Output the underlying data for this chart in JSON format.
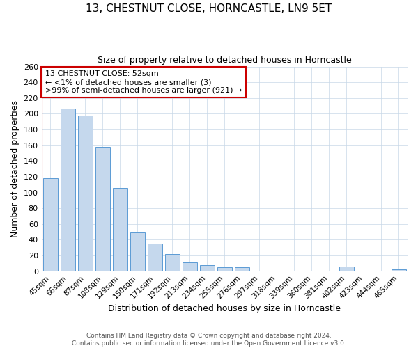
{
  "title": "13, CHESTNUT CLOSE, HORNCASTLE, LN9 5ET",
  "subtitle": "Size of property relative to detached houses in Horncastle",
  "xlabel": "Distribution of detached houses by size in Horncastle",
  "ylabel": "Number of detached properties",
  "bar_labels": [
    "45sqm",
    "66sqm",
    "87sqm",
    "108sqm",
    "129sqm",
    "150sqm",
    "171sqm",
    "192sqm",
    "213sqm",
    "234sqm",
    "255sqm",
    "276sqm",
    "297sqm",
    "318sqm",
    "339sqm",
    "360sqm",
    "381sqm",
    "402sqm",
    "423sqm",
    "444sqm",
    "465sqm"
  ],
  "bar_heights": [
    118,
    207,
    198,
    158,
    106,
    49,
    35,
    22,
    11,
    8,
    5,
    5,
    0,
    0,
    0,
    0,
    0,
    6,
    0,
    0,
    2
  ],
  "bar_color": "#c5d8ed",
  "bar_edge_color": "#5b9bd5",
  "ylim": [
    0,
    260
  ],
  "yticks": [
    0,
    20,
    40,
    60,
    80,
    100,
    120,
    140,
    160,
    180,
    200,
    220,
    240,
    260
  ],
  "property_line_color": "#cc0000",
  "annotation_box_text": "13 CHESTNUT CLOSE: 52sqm\n← <1% of detached houses are smaller (3)\n>99% of semi-detached houses are larger (921) →",
  "annotation_box_color": "#cc0000",
  "footer_line1": "Contains HM Land Registry data © Crown copyright and database right 2024.",
  "footer_line2": "Contains public sector information licensed under the Open Government Licence v3.0.",
  "background_color": "#ffffff",
  "grid_color": "#c8d8e8"
}
